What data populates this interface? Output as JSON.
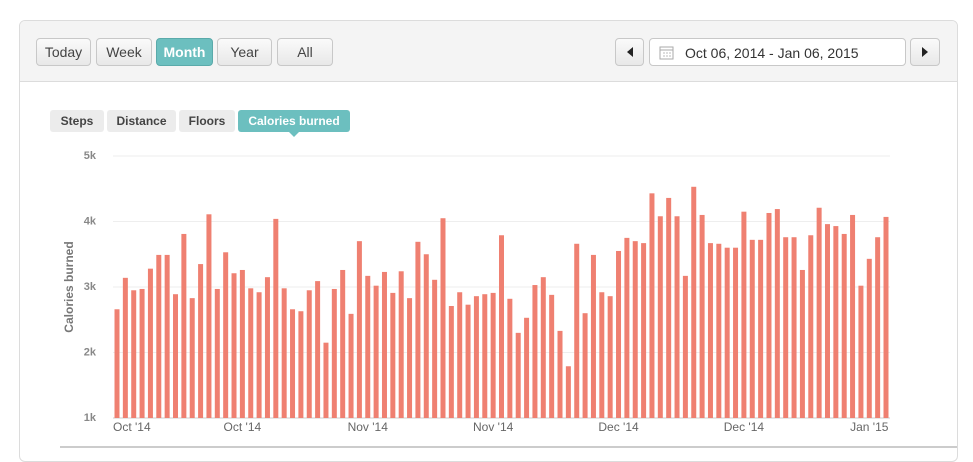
{
  "toolbar": {
    "buttons": [
      "Today",
      "Week",
      "Month",
      "Year",
      "All"
    ],
    "active_button": 2,
    "date_range": "Oct 06, 2014 - Jan 06, 2015"
  },
  "tabs": {
    "items": [
      "Steps",
      "Distance",
      "Floors",
      "Calories burned"
    ],
    "active_tab": 3
  },
  "chart_data": {
    "type": "bar",
    "y_label": "Calories burned",
    "color": "#ef8071",
    "grid": true,
    "ylim": [
      1000,
      5000
    ],
    "yticks": [
      {
        "value": 1000,
        "label": "1k"
      },
      {
        "value": 2000,
        "label": "2k"
      },
      {
        "value": 3000,
        "label": "3k"
      },
      {
        "value": 4000,
        "label": "4k"
      },
      {
        "value": 5000,
        "label": "5k"
      }
    ],
    "categories": [
      "Oct '14",
      null,
      null,
      null,
      null,
      null,
      null,
      null,
      null,
      null,
      null,
      null,
      null,
      null,
      null,
      "Oct '14",
      null,
      null,
      null,
      null,
      null,
      null,
      null,
      null,
      null,
      null,
      null,
      null,
      null,
      null,
      "Nov '14",
      null,
      null,
      null,
      null,
      null,
      null,
      null,
      null,
      null,
      null,
      null,
      null,
      null,
      null,
      "Nov '14",
      null,
      null,
      null,
      null,
      null,
      null,
      null,
      null,
      null,
      null,
      null,
      null,
      null,
      null,
      "Dec '14",
      null,
      null,
      null,
      null,
      null,
      null,
      null,
      null,
      null,
      null,
      null,
      null,
      null,
      null,
      "Dec '14",
      null,
      null,
      null,
      null,
      null,
      null,
      null,
      null,
      null,
      null,
      null,
      null,
      null,
      null,
      "Jan '15",
      null,
      null
    ],
    "values": [
      2660,
      3140,
      2950,
      2970,
      3280,
      3490,
      3490,
      2890,
      3810,
      2830,
      3350,
      4110,
      2970,
      3530,
      3210,
      3260,
      2980,
      2920,
      3150,
      4040,
      2980,
      2660,
      2630,
      2950,
      3090,
      2150,
      2970,
      3260,
      2590,
      3700,
      3170,
      3020,
      3230,
      2910,
      3240,
      2830,
      3690,
      3500,
      3110,
      4050,
      2710,
      2920,
      2730,
      2860,
      2890,
      2910,
      3790,
      2820,
      2300,
      2530,
      3030,
      3150,
      2880,
      2330,
      1790,
      3660,
      2600,
      3490,
      2920,
      2860,
      3550,
      3750,
      3700,
      3670,
      4430,
      4080,
      4360,
      4080,
      3170,
      4530,
      4100,
      3670,
      3660,
      3600,
      3600,
      4150,
      3720,
      3720,
      4130,
      4190,
      3760,
      3760,
      3260,
      3790,
      4210,
      3960,
      3930,
      3810,
      4100,
      3020,
      3430,
      3760,
      4070
    ]
  }
}
